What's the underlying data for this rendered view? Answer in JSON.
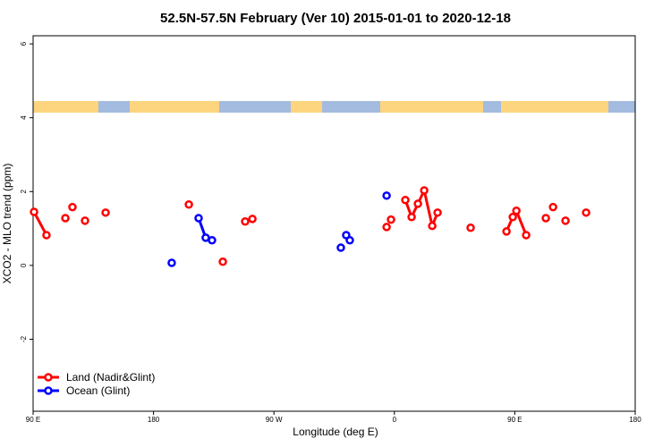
{
  "chart_data": {
    "type": "line",
    "title": "52.5N-57.5N February (Ver 10)   2015-01-01 to 2020-12-18",
    "x_label": "Longitude (deg E)",
    "y_label": "XCO2 - MLO trend (ppm)",
    "xlim": [
      90,
      540
    ],
    "ylim": [
      -3.95,
      6.22
    ],
    "xticks": [
      {
        "value": 90,
        "label": "90 E"
      },
      180,
      {
        "value": 270,
        "label": "90 W"
      },
      {
        "value": 360,
        "label": "0"
      },
      {
        "value": 450,
        "label": "90 E"
      },
      {
        "value": 540,
        "label": "180"
      }
    ],
    "yticks": [
      -2,
      0,
      2,
      4,
      6
    ],
    "legend": "bottom-left",
    "series": [
      {
        "name": "Land (Nadir&Glint)",
        "color": "#ff0000",
        "x": [
          90.7,
          100.0,
          null,
          114.1,
          null,
          119.4,
          null,
          128.8,
          null,
          144.2,
          null,
          206.4,
          null,
          231.8,
          null,
          248.5,
          null,
          253.9,
          null,
          354.2,
          null,
          357.5,
          null,
          368.2,
          372.9,
          377.6,
          382.3,
          388.3,
          392.3,
          null,
          417.0,
          null,
          443.8,
          448.5,
          451.2,
          458.5,
          null,
          473.2,
          null,
          478.6,
          null,
          487.9,
          null,
          503.3
        ],
        "values": [
          1.45,
          0.82,
          null,
          1.28,
          null,
          1.58,
          null,
          1.21,
          null,
          1.43,
          null,
          1.65,
          null,
          0.1,
          null,
          1.19,
          null,
          1.26,
          null,
          1.04,
          null,
          1.24,
          null,
          1.77,
          1.31,
          1.67,
          2.03,
          1.07,
          1.43,
          null,
          1.02,
          null,
          0.92,
          1.31,
          1.48,
          0.82,
          null,
          1.28,
          null,
          1.58,
          null,
          1.21,
          null,
          1.43
        ]
      },
      {
        "name": "Ocean (Glint)",
        "color": "#0000ff",
        "x": [
          193.6,
          null,
          213.7,
          219.0,
          223.7,
          null,
          320.0,
          null,
          324.0,
          326.7,
          null,
          354.2
        ],
        "values": [
          0.07,
          null,
          1.28,
          0.75,
          0.68,
          null,
          0.48,
          null,
          0.82,
          0.68,
          null,
          1.89
        ]
      }
    ]
  }
}
